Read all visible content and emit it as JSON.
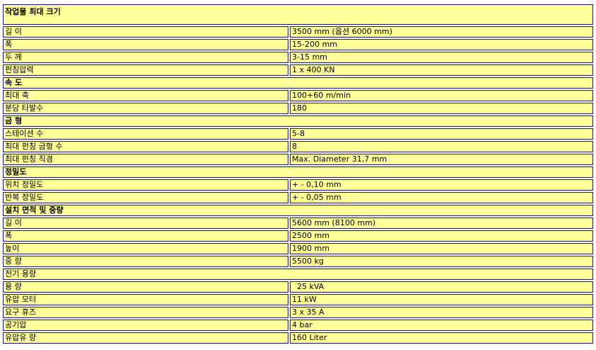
{
  "sections": [
    {
      "title": "작업물 최대 크기",
      "bold": true,
      "rows": [
        [
          "길 이",
          "3500 mm (옵션 6000 mm)"
        ],
        [
          "폭",
          "15-200 mm"
        ],
        [
          "두 께",
          "3-15 mm"
        ],
        [
          "펀칭압력",
          "1 x 400 KN"
        ]
      ]
    },
    {
      "title": "속 도",
      "bold": true,
      "rows": [
        [
          "최대 축",
          "100+60 m/min"
        ],
        [
          "분당 타발수",
          "180"
        ]
      ]
    },
    {
      "title": "금 형",
      "bold": true,
      "rows": [
        [
          "스테이션 수",
          "5-8"
        ],
        [
          "최대 펀칭 금형 수",
          "8"
        ],
        [
          "최대 펀칭 직경",
          "Max. Diameter 31,7 mm"
        ]
      ]
    },
    {
      "title": "정밀도",
      "bold": true,
      "rows": [
        [
          "위치 정밀도",
          "+ - 0,10 mm"
        ],
        [
          "반복 정밀도",
          "+ - 0,05 mm"
        ]
      ]
    },
    {
      "title": "설치 면적 및 중량",
      "bold": true,
      "rows": [
        [
          "길 이",
          "5600 mm (8100 mm)"
        ],
        [
          "폭",
          "2500 mm"
        ],
        [
          "높이",
          "1900 mm"
        ],
        [
          "중 량",
          "5500 kg"
        ]
      ]
    },
    {
      "title": "전기 용량",
      "bold": false,
      "rows": [
        [
          "용 량",
          "  25 kVA"
        ],
        [
          "유압 모터",
          "11 kW"
        ],
        [
          "요구 휴즈",
          "3 x 35 A"
        ],
        [
          "공기압",
          "4 bar"
        ],
        [
          "유압유 량",
          "160 Liter"
        ]
      ]
    }
  ]
}
